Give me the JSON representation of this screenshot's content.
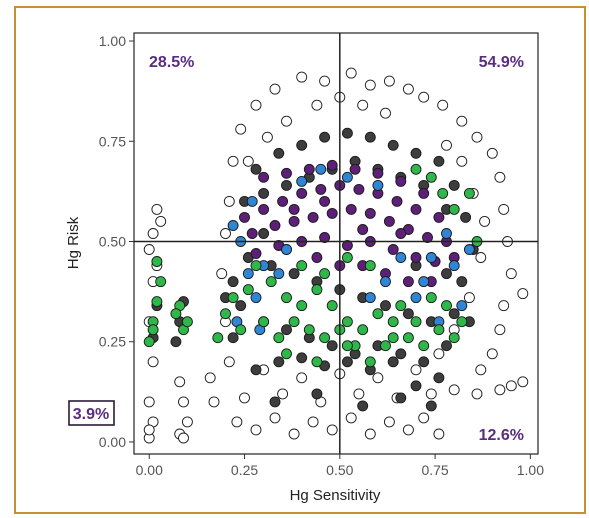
{
  "chart_data": {
    "type": "scatter",
    "title": "",
    "xlabel": "Hg Sensitivity",
    "ylabel": "Hg Risk",
    "xlim": [
      -0.04,
      1.02
    ],
    "ylim": [
      -0.03,
      1.02
    ],
    "x_ticks": [
      "0.00",
      "0.25",
      "0.50",
      "0.75",
      "1.00"
    ],
    "x_tick_values": [
      0,
      0.25,
      0.5,
      0.75,
      1.0
    ],
    "y_ticks": [
      "0.00",
      "0.25",
      "0.50",
      "0.75",
      "1.00"
    ],
    "y_tick_values": [
      0,
      0.25,
      0.5,
      0.75,
      1.0
    ],
    "grid": false,
    "reference_lines": {
      "x": 0.5,
      "y": 0.5
    },
    "quadrant_labels": {
      "top_left": "28.5%",
      "top_right": "54.9%",
      "bottom_right": "12.6%",
      "bottom_left": "3.9%"
    },
    "series": [
      {
        "color": "#ffffff",
        "points": [
          [
            0.23,
            0.05
          ],
          [
            0.28,
            0.03
          ],
          [
            0.33,
            0.06
          ],
          [
            0.38,
            0.02
          ],
          [
            0.43,
            0.05
          ],
          [
            0.48,
            0.03
          ],
          [
            0.53,
            0.06
          ],
          [
            0.58,
            0.02
          ],
          [
            0.63,
            0.05
          ],
          [
            0.68,
            0.03
          ],
          [
            0.72,
            0.06
          ],
          [
            0.76,
            0.02
          ],
          [
            0.25,
            0.11
          ],
          [
            0.35,
            0.12
          ],
          [
            0.45,
            0.1
          ],
          [
            0.55,
            0.12
          ],
          [
            0.65,
            0.11
          ],
          [
            0.74,
            0.12
          ],
          [
            0.8,
            0.13
          ],
          [
            0.86,
            0.12
          ],
          [
            0.92,
            0.13
          ],
          [
            0.21,
            0.2
          ],
          [
            0.2,
            0.3
          ],
          [
            0.19,
            0.42
          ],
          [
            0.2,
            0.52
          ],
          [
            0.21,
            0.6
          ],
          [
            0.22,
            0.7
          ],
          [
            0.24,
            0.78
          ],
          [
            0.28,
            0.84
          ],
          [
            0.33,
            0.88
          ],
          [
            0.4,
            0.91
          ],
          [
            0.46,
            0.9
          ],
          [
            0.53,
            0.92
          ],
          [
            0.58,
            0.89
          ],
          [
            0.63,
            0.9
          ],
          [
            0.68,
            0.88
          ],
          [
            0.72,
            0.86
          ],
          [
            0.77,
            0.84
          ],
          [
            0.82,
            0.8
          ],
          [
            0.86,
            0.76
          ],
          [
            0.9,
            0.72
          ],
          [
            0.92,
            0.66
          ],
          [
            0.93,
            0.58
          ],
          [
            0.94,
            0.5
          ],
          [
            0.95,
            0.42
          ],
          [
            0.93,
            0.34
          ],
          [
            0.92,
            0.28
          ],
          [
            0.9,
            0.22
          ],
          [
            0.87,
            0.18
          ],
          [
            0.98,
            0.37
          ],
          [
            0.95,
            0.14
          ],
          [
            0.82,
            0.7
          ],
          [
            0.78,
            0.74
          ],
          [
            0.85,
            0.62
          ],
          [
            0.88,
            0.55
          ],
          [
            0.87,
            0.46
          ],
          [
            0.84,
            0.36
          ],
          [
            0.8,
            0.28
          ],
          [
            0.76,
            0.22
          ],
          [
            0.3,
            0.18
          ],
          [
            0.4,
            0.16
          ],
          [
            0.5,
            0.17
          ],
          [
            0.6,
            0.16
          ],
          [
            0.7,
            0.18
          ],
          [
            0.26,
            0.7
          ],
          [
            0.31,
            0.76
          ],
          [
            0.36,
            0.8
          ],
          [
            0.44,
            0.84
          ],
          [
            0.5,
            0.86
          ],
          [
            0.56,
            0.84
          ],
          [
            0.62,
            0.82
          ],
          [
            0.02,
            0.58
          ],
          [
            0.03,
            0.55
          ],
          [
            0.01,
            0.52
          ],
          [
            0.0,
            0.48
          ],
          [
            0.02,
            0.44
          ],
          [
            0.01,
            0.4
          ],
          [
            0.0,
            0.3
          ],
          [
            0.01,
            0.2
          ],
          [
            0.0,
            0.1
          ],
          [
            0.01,
            0.05
          ],
          [
            0.08,
            0.15
          ],
          [
            0.09,
            0.1
          ],
          [
            0.1,
            0.05
          ],
          [
            0.08,
            0.02
          ],
          [
            0.09,
            0.01
          ],
          [
            0.0,
            0.01
          ],
          [
            0.0,
            0.03
          ],
          [
            0.98,
            0.15
          ],
          [
            0.16,
            0.16
          ],
          [
            0.17,
            0.1
          ]
        ]
      },
      {
        "color": "#3d3d3d",
        "points": [
          [
            0.28,
            0.68
          ],
          [
            0.34,
            0.72
          ],
          [
            0.4,
            0.74
          ],
          [
            0.46,
            0.76
          ],
          [
            0.52,
            0.77
          ],
          [
            0.58,
            0.76
          ],
          [
            0.64,
            0.74
          ],
          [
            0.7,
            0.72
          ],
          [
            0.76,
            0.7
          ],
          [
            0.8,
            0.64
          ],
          [
            0.25,
            0.6
          ],
          [
            0.3,
            0.62
          ],
          [
            0.36,
            0.64
          ],
          [
            0.42,
            0.66
          ],
          [
            0.48,
            0.68
          ],
          [
            0.54,
            0.7
          ],
          [
            0.6,
            0.68
          ],
          [
            0.66,
            0.66
          ],
          [
            0.72,
            0.64
          ],
          [
            0.78,
            0.58
          ],
          [
            0.26,
            0.46
          ],
          [
            0.32,
            0.44
          ],
          [
            0.38,
            0.42
          ],
          [
            0.44,
            0.4
          ],
          [
            0.5,
            0.38
          ],
          [
            0.56,
            0.36
          ],
          [
            0.62,
            0.34
          ],
          [
            0.68,
            0.32
          ],
          [
            0.74,
            0.3
          ],
          [
            0.8,
            0.32
          ],
          [
            0.24,
            0.34
          ],
          [
            0.3,
            0.3
          ],
          [
            0.36,
            0.28
          ],
          [
            0.42,
            0.26
          ],
          [
            0.48,
            0.24
          ],
          [
            0.54,
            0.22
          ],
          [
            0.6,
            0.24
          ],
          [
            0.66,
            0.22
          ],
          [
            0.72,
            0.2
          ],
          [
            0.78,
            0.24
          ],
          [
            0.28,
            0.18
          ],
          [
            0.34,
            0.2
          ],
          [
            0.4,
            0.21
          ],
          [
            0.46,
            0.19
          ],
          [
            0.52,
            0.2
          ],
          [
            0.58,
            0.18
          ],
          [
            0.64,
            0.2
          ],
          [
            0.7,
            0.14
          ],
          [
            0.76,
            0.16
          ],
          [
            0.84,
            0.3
          ],
          [
            0.22,
            0.4
          ],
          [
            0.22,
            0.26
          ],
          [
            0.2,
            0.36
          ],
          [
            0.82,
            0.4
          ],
          [
            0.85,
            0.48
          ],
          [
            0.83,
            0.56
          ],
          [
            0.3,
            0.52
          ],
          [
            0.36,
            0.48
          ],
          [
            0.7,
            0.44
          ],
          [
            0.78,
            0.42
          ],
          [
            0.08,
            0.3
          ],
          [
            0.09,
            0.35
          ],
          [
            0.07,
            0.25
          ],
          [
            0.01,
            0.26
          ],
          [
            0.02,
            0.34
          ],
          [
            0.33,
            0.1
          ],
          [
            0.44,
            0.12
          ],
          [
            0.56,
            0.09
          ],
          [
            0.66,
            0.11
          ],
          [
            0.74,
            0.09
          ]
        ]
      },
      {
        "color": "#5e1f78",
        "points": [
          [
            0.25,
            0.56
          ],
          [
            0.3,
            0.58
          ],
          [
            0.35,
            0.6
          ],
          [
            0.4,
            0.62
          ],
          [
            0.45,
            0.63
          ],
          [
            0.5,
            0.64
          ],
          [
            0.55,
            0.63
          ],
          [
            0.6,
            0.62
          ],
          [
            0.65,
            0.6
          ],
          [
            0.7,
            0.58
          ],
          [
            0.27,
            0.52
          ],
          [
            0.33,
            0.54
          ],
          [
            0.38,
            0.55
          ],
          [
            0.43,
            0.56
          ],
          [
            0.48,
            0.57
          ],
          [
            0.53,
            0.58
          ],
          [
            0.58,
            0.57
          ],
          [
            0.63,
            0.55
          ],
          [
            0.68,
            0.53
          ],
          [
            0.73,
            0.51
          ],
          [
            0.3,
            0.66
          ],
          [
            0.36,
            0.67
          ],
          [
            0.42,
            0.68
          ],
          [
            0.48,
            0.69
          ],
          [
            0.54,
            0.68
          ],
          [
            0.6,
            0.67
          ],
          [
            0.66,
            0.65
          ],
          [
            0.72,
            0.62
          ],
          [
            0.76,
            0.56
          ],
          [
            0.78,
            0.5
          ],
          [
            0.4,
            0.5
          ],
          [
            0.46,
            0.51
          ],
          [
            0.52,
            0.49
          ],
          [
            0.58,
            0.5
          ],
          [
            0.64,
            0.48
          ],
          [
            0.7,
            0.46
          ],
          [
            0.75,
            0.45
          ],
          [
            0.56,
            0.44
          ],
          [
            0.62,
            0.42
          ],
          [
            0.68,
            0.4
          ],
          [
            0.34,
            0.49
          ],
          [
            0.28,
            0.47
          ],
          [
            0.44,
            0.46
          ],
          [
            0.5,
            0.44
          ],
          [
            0.74,
            0.4
          ],
          [
            0.8,
            0.46
          ],
          [
            0.66,
            0.52
          ],
          [
            0.56,
            0.53
          ],
          [
            0.46,
            0.6
          ],
          [
            0.38,
            0.58
          ]
        ]
      },
      {
        "color": "#2f86d6",
        "points": [
          [
            0.22,
            0.54
          ],
          [
            0.24,
            0.5
          ],
          [
            0.26,
            0.42
          ],
          [
            0.28,
            0.36
          ],
          [
            0.3,
            0.44
          ],
          [
            0.34,
            0.42
          ],
          [
            0.23,
            0.3
          ],
          [
            0.29,
            0.28
          ],
          [
            0.58,
            0.36
          ],
          [
            0.66,
            0.46
          ],
          [
            0.72,
            0.4
          ],
          [
            0.78,
            0.52
          ],
          [
            0.8,
            0.44
          ],
          [
            0.82,
            0.34
          ],
          [
            0.76,
            0.3
          ],
          [
            0.4,
            0.65
          ],
          [
            0.45,
            0.68
          ],
          [
            0.52,
            0.66
          ],
          [
            0.6,
            0.64
          ],
          [
            0.36,
            0.48
          ],
          [
            0.7,
            0.36
          ],
          [
            0.74,
            0.46
          ],
          [
            0.84,
            0.48
          ],
          [
            0.27,
            0.6
          ],
          [
            0.62,
            0.4
          ]
        ]
      },
      {
        "color": "#2fb84a",
        "points": [
          [
            0.28,
            0.44
          ],
          [
            0.32,
            0.4
          ],
          [
            0.36,
            0.36
          ],
          [
            0.4,
            0.34
          ],
          [
            0.44,
            0.38
          ],
          [
            0.48,
            0.34
          ],
          [
            0.52,
            0.3
          ],
          [
            0.56,
            0.28
          ],
          [
            0.6,
            0.32
          ],
          [
            0.64,
            0.3
          ],
          [
            0.68,
            0.26
          ],
          [
            0.72,
            0.24
          ],
          [
            0.76,
            0.28
          ],
          [
            0.3,
            0.3
          ],
          [
            0.34,
            0.26
          ],
          [
            0.38,
            0.3
          ],
          [
            0.42,
            0.28
          ],
          [
            0.46,
            0.26
          ],
          [
            0.5,
            0.28
          ],
          [
            0.54,
            0.24
          ],
          [
            0.26,
            0.38
          ],
          [
            0.24,
            0.28
          ],
          [
            0.22,
            0.36
          ],
          [
            0.4,
            0.44
          ],
          [
            0.46,
            0.42
          ],
          [
            0.52,
            0.46
          ],
          [
            0.58,
            0.44
          ],
          [
            0.62,
            0.24
          ],
          [
            0.66,
            0.34
          ],
          [
            0.74,
            0.36
          ],
          [
            0.78,
            0.34
          ],
          [
            0.7,
            0.3
          ],
          [
            0.82,
            0.3
          ],
          [
            0.86,
            0.5
          ],
          [
            0.84,
            0.62
          ],
          [
            0.8,
            0.58
          ],
          [
            0.77,
            0.62
          ],
          [
            0.74,
            0.66
          ],
          [
            0.7,
            0.68
          ],
          [
            0.8,
            0.26
          ],
          [
            0.02,
            0.35
          ],
          [
            0.03,
            0.4
          ],
          [
            0.01,
            0.3
          ],
          [
            0.02,
            0.45
          ],
          [
            0.0,
            0.25
          ],
          [
            0.01,
            0.28
          ],
          [
            0.08,
            0.34
          ],
          [
            0.09,
            0.28
          ],
          [
            0.07,
            0.32
          ],
          [
            0.1,
            0.3
          ],
          [
            0.36,
            0.22
          ],
          [
            0.44,
            0.2
          ],
          [
            0.52,
            0.24
          ],
          [
            0.58,
            0.2
          ],
          [
            0.64,
            0.26
          ],
          [
            0.2,
            0.32
          ],
          [
            0.18,
            0.26
          ]
        ]
      }
    ]
  }
}
